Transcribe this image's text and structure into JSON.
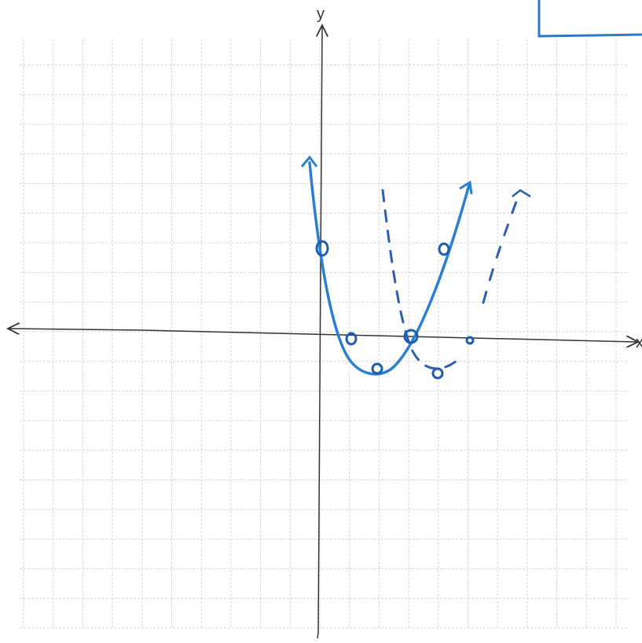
{
  "axes": {
    "y_label": "y",
    "x_label": "x"
  }
}
